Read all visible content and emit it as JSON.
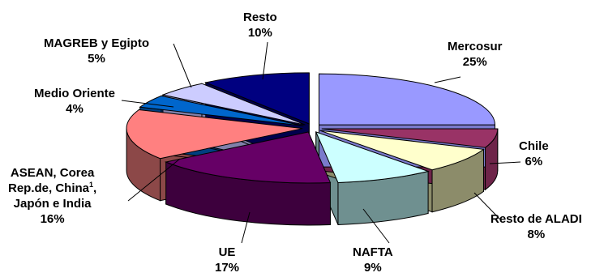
{
  "chart_data": {
    "type": "pie",
    "style": "3d-exploded",
    "title": "",
    "legend": "none",
    "data_labels": "category and percent",
    "slices": [
      {
        "name": "Mercosur",
        "value": 25,
        "value_label": "25%",
        "color": "#9999ff",
        "side_color": "#7a7acc"
      },
      {
        "name": "Chile",
        "value": 6,
        "value_label": "6%",
        "color": "#993366",
        "side_color": "#6e2449"
      },
      {
        "name": "Resto de ALADI",
        "value": 8,
        "value_label": "8%",
        "color": "#ffffcc",
        "side_color": "#8c8c6a"
      },
      {
        "name": "NAFTA",
        "value": 9,
        "value_label": "9%",
        "color": "#ccffff",
        "side_color": "#6f9090"
      },
      {
        "name": "UE",
        "value": 17,
        "value_label": "17%",
        "color": "#660066",
        "side_color": "#3d003d"
      },
      {
        "name": "ASEAN, Corea Rep.de, China, Japón e India",
        "name_lines": [
          "ASEAN, Corea",
          "Rep.de, China",
          "Japón e India"
        ],
        "footnote_mark": "1",
        "value": 16,
        "value_label": "16%",
        "color": "#ff8080",
        "side_color": "#8c4848"
      },
      {
        "name": "Medio Oriente",
        "value": 4,
        "value_label": "4%",
        "color": "#0066cc",
        "side_color": "#003f80"
      },
      {
        "name": "MAGREB y Egipto",
        "value": 5,
        "value_label": "5%",
        "color": "#ccccff",
        "side_color": "#8080aa"
      },
      {
        "name": "Resto",
        "value": 10,
        "value_label": "10%",
        "color": "#000080",
        "side_color": "#00004d"
      }
    ]
  }
}
